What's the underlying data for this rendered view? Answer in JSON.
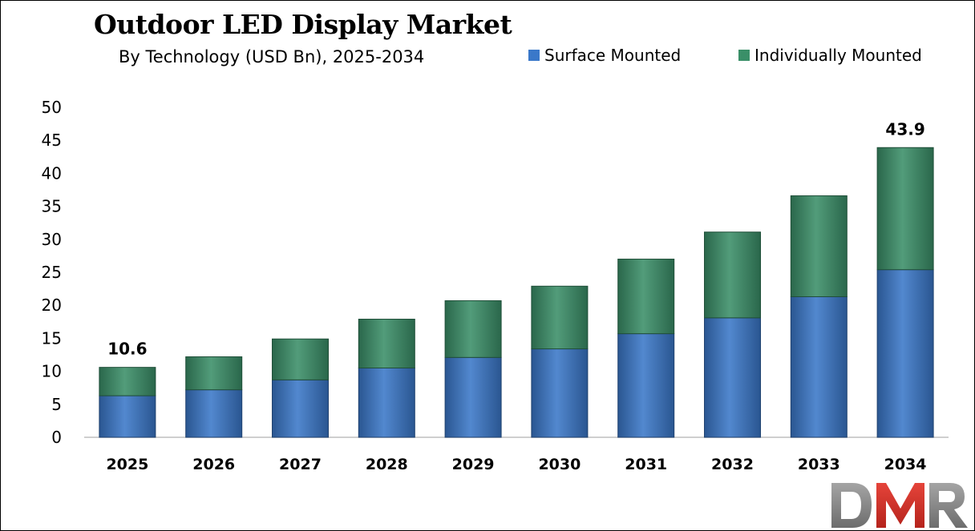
{
  "chart_data": {
    "type": "bar",
    "stacked": true,
    "title": "Outdoor LED Display Market",
    "subtitle": "By Technology (USD Bn), 2025-2034",
    "categories": [
      "2025",
      "2026",
      "2027",
      "2028",
      "2029",
      "2030",
      "2031",
      "2032",
      "2033",
      "2034"
    ],
    "series": [
      {
        "name": "Surface Mounted",
        "color": "#3a78c9",
        "values": [
          6.3,
          7.2,
          8.7,
          10.5,
          12.1,
          13.4,
          15.7,
          18.1,
          21.3,
          25.4
        ]
      },
      {
        "name": "Individually Mounted",
        "color": "#3a8f68",
        "values": [
          4.3,
          5.0,
          6.2,
          7.4,
          8.6,
          9.5,
          11.3,
          13.0,
          15.3,
          18.5
        ]
      }
    ],
    "data_labels": [
      {
        "category": "2025",
        "text": "10.6"
      },
      {
        "category": "2034",
        "text": "43.9"
      }
    ],
    "ylim": [
      0,
      50
    ],
    "yticks": [
      0,
      5,
      10,
      15,
      20,
      25,
      30,
      35,
      40,
      45,
      50
    ],
    "legend_position": "top-right",
    "grid": false
  },
  "logo": {
    "text": "DMR",
    "colors": [
      "#8a8a8a",
      "#d9342b",
      "#8a8a8a"
    ],
    "icon": "dmr-logo"
  }
}
